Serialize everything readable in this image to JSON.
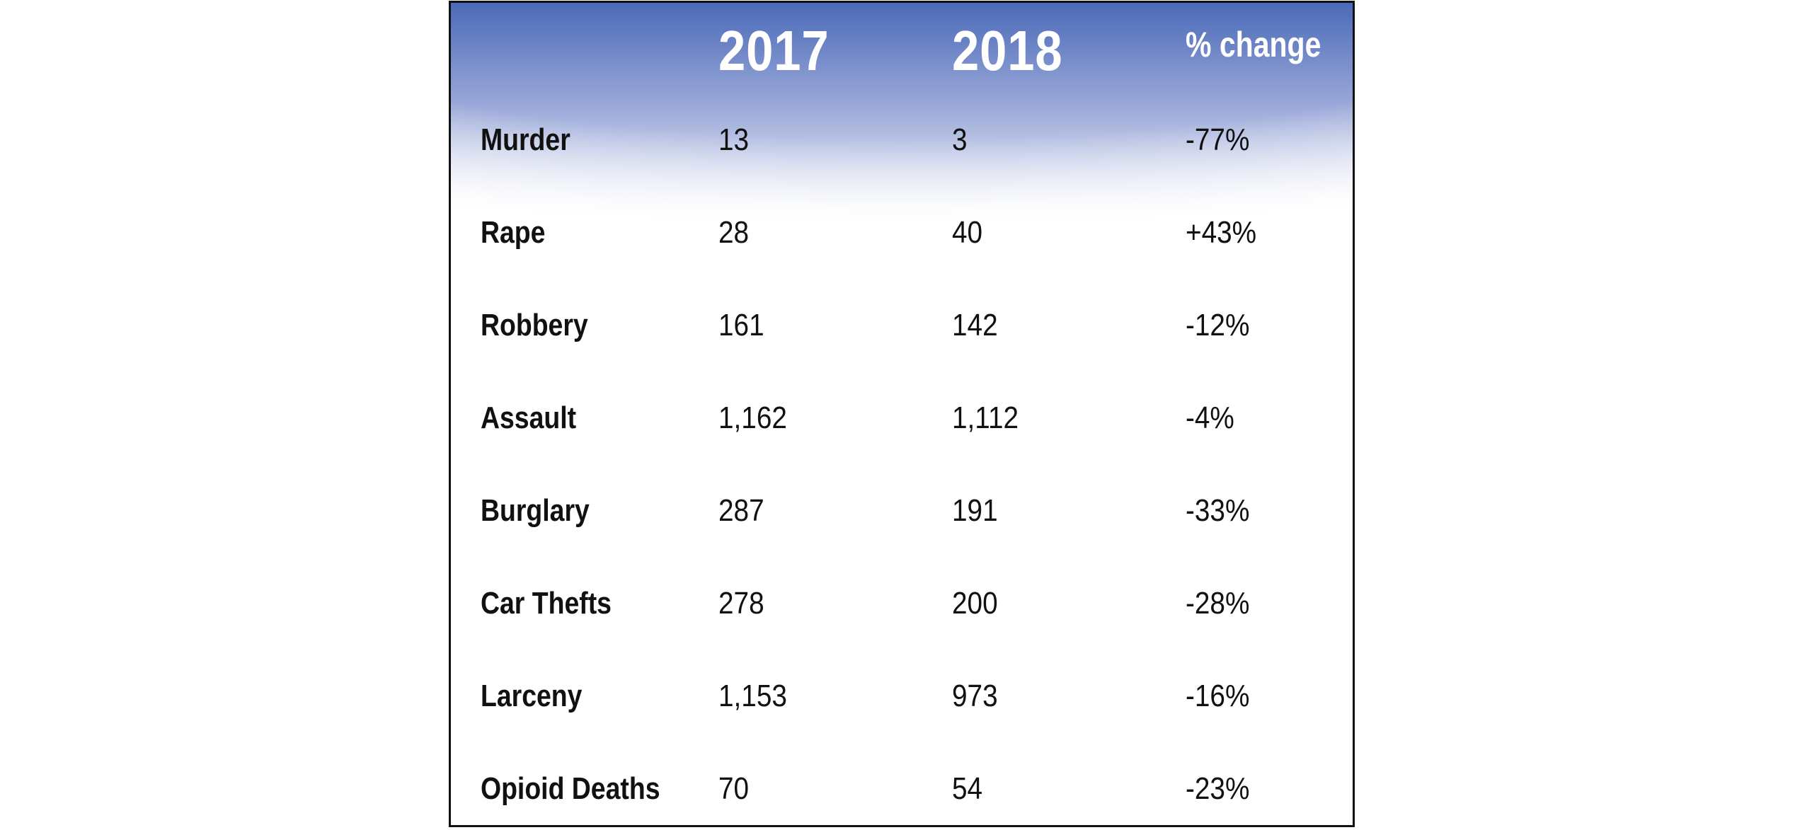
{
  "chart_data": {
    "type": "table",
    "title": "",
    "columns": [
      "",
      "2017",
      "2018",
      "% change"
    ],
    "rows": [
      {
        "label": "Murder",
        "y2017": "13",
        "y2018": "3",
        "change": "-77%"
      },
      {
        "label": "Rape",
        "y2017": "28",
        "y2018": "40",
        "change": "+43%"
      },
      {
        "label": "Robbery",
        "y2017": "161",
        "y2018": "142",
        "change": "-12%"
      },
      {
        "label": "Assault",
        "y2017": "1,162",
        "y2018": "1,112",
        "change": "-4%"
      },
      {
        "label": "Burglary",
        "y2017": "287",
        "y2018": "191",
        "change": "-33%"
      },
      {
        "label": "Car Thefts",
        "y2017": "278",
        "y2018": "200",
        "change": "-28%"
      },
      {
        "label": "Larceny",
        "y2017": "1,153",
        "y2018": "973",
        "change": "-16%"
      },
      {
        "label": "Opioid Deaths",
        "y2017": "70",
        "y2018": "54",
        "change": "-23%"
      }
    ],
    "colors": {
      "header_gradient_top": "#4a6ab8",
      "header_gradient_mid": "#9aa8d8",
      "header_gradient_end": "#ffffff",
      "header_text": "#ffffff",
      "body_text": "#111111",
      "border": "#111111"
    }
  }
}
